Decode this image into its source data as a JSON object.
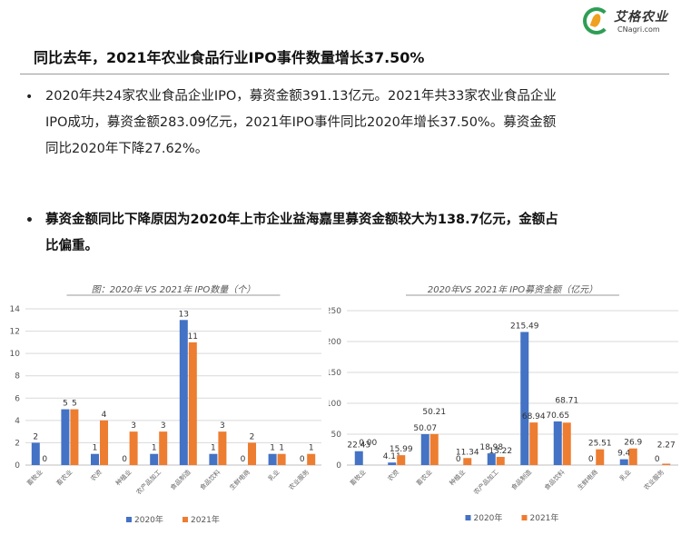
{
  "logo": {
    "name_cn": "艾格农业",
    "name_en": "CNagri.com"
  },
  "title": "同比去年，2021年农业食品行业IPO事件数量增长37.50%",
  "bullet_symbol": "•",
  "paragraphs": {
    "p1": {
      "line1": "2020年共24家农业食品企业IPO，募资金额391.13亿元。2021年共33家农业食品企业",
      "line2": "IPO成功，募资金额283.09亿元，2021年IPO事件同比2020年增长37.50%。募资金额",
      "line3": "同比2020年下降27.62%。"
    },
    "p2": {
      "line1": "募资金额同比下降原因为2020年上市企业益海嘉里募资金额较大为138.7亿元，金额占",
      "line2": "比偏重。"
    }
  },
  "colors": {
    "s2020": "#4472C4",
    "s2021": "#ED7D31",
    "grid": "#d9d9d9",
    "axis": "#bfbfbf"
  },
  "chart_data": [
    {
      "type": "bar",
      "title": "图：2020年 VS 2021年 IPO数量（个）",
      "categories": [
        "畜牧业",
        "畜农业",
        "农资",
        "种植业",
        "农产品加工",
        "食品制造",
        "食品饮料",
        "生鲜电商",
        "乳业",
        "农业服务"
      ],
      "series": [
        {
          "name": "2020年",
          "values": [
            2,
            5,
            1,
            0,
            1,
            13,
            1,
            0,
            1,
            0
          ]
        },
        {
          "name": "2021年",
          "values": [
            0,
            5,
            4,
            3,
            3,
            11,
            3,
            2,
            1,
            1
          ]
        }
      ],
      "ylim": [
        0,
        14
      ],
      "yticks": [
        0,
        2,
        4,
        6,
        8,
        10,
        12,
        14
      ],
      "grid": true,
      "legend": "bottom"
    },
    {
      "type": "bar",
      "title": "2020年VS 2021年 IPO募资金额（亿元）",
      "categories": [
        "畜牧业",
        "农资",
        "畜农业",
        "种植业",
        "农产品加工",
        "食品制造",
        "食品饮料",
        "生鲜电商",
        "乳业",
        "农业服务"
      ],
      "series": [
        {
          "name": "2020年",
          "values": [
            22.43,
            4.11,
            50.07,
            0,
            18.98,
            215.49,
            70.65,
            0,
            9.4,
            0
          ]
        },
        {
          "name": "2021年",
          "values": [
            0.0,
            15.99,
            50.21,
            11.34,
            13.22,
            68.94,
            68.71,
            25.51,
            26.9,
            2.27
          ]
        }
      ],
      "labels": [
        [
          "22.43",
          "4.11",
          "50.07",
          "0",
          "18.98",
          "215.49",
          "70.65",
          "0",
          "9.4",
          "0"
        ],
        [
          "0.00",
          "15.99",
          "50.21",
          "11.34",
          "13.22",
          "68.94",
          "68.71",
          "25.51",
          "26.9",
          "2.27"
        ]
      ],
      "ylim": [
        0,
        250
      ],
      "yticks": [
        0,
        50,
        100,
        150,
        200,
        250
      ],
      "grid": true,
      "legend": "bottom"
    }
  ]
}
